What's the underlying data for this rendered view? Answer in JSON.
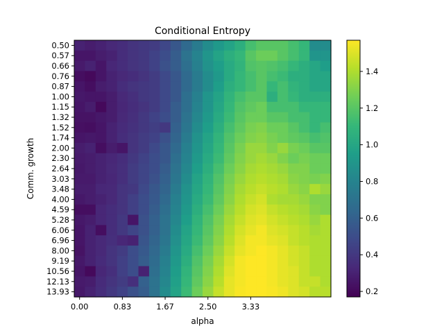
{
  "chart_data": {
    "type": "heatmap",
    "title": "Conditional Entropy",
    "xlabel": "alpha",
    "ylabel": "Comm. growth",
    "x_tick_labels": [
      "0.00",
      "0.83",
      "1.67",
      "2.50",
      "3.33"
    ],
    "x_tick_columns": [
      0,
      4,
      8,
      12,
      16
    ],
    "y_labels": [
      "0.50",
      "0.57",
      "0.66",
      "0.76",
      "0.87",
      "1.00",
      "1.15",
      "1.32",
      "1.52",
      "1.74",
      "2.00",
      "2.30",
      "2.64",
      "3.03",
      "3.48",
      "4.00",
      "4.59",
      "5.28",
      "6.06",
      "6.96",
      "8.00",
      "9.19",
      "10.56",
      "12.13",
      "13.93"
    ],
    "colorbar": {
      "min": 0.17,
      "max": 1.57,
      "ticks": [
        0.2,
        0.4,
        0.6,
        0.8,
        1.0,
        1.2,
        1.4
      ],
      "tick_labels": [
        "0.2",
        "0.4",
        "0.6",
        "0.8",
        "1.0",
        "1.2",
        "1.4"
      ],
      "colormap": [
        "#440154",
        "#482878",
        "#3e4989",
        "#31688e",
        "#26828e",
        "#1f9e89",
        "#35b779",
        "#6ece58",
        "#b5de2b",
        "#fde725"
      ]
    },
    "values": [
      [
        0.3,
        0.28,
        0.3,
        0.33,
        0.35,
        0.38,
        0.4,
        0.42,
        0.47,
        0.55,
        0.65,
        0.75,
        0.85,
        0.92,
        0.98,
        1.05,
        1.15,
        1.2,
        1.2,
        1.2,
        1.15,
        1.1,
        0.85,
        0.85
      ],
      [
        0.25,
        0.25,
        0.28,
        0.3,
        0.35,
        0.38,
        0.4,
        0.45,
        0.5,
        0.58,
        0.7,
        0.8,
        0.9,
        0.98,
        1.05,
        1.1,
        1.2,
        1.25,
        1.25,
        1.2,
        1.15,
        1.1,
        0.9,
        0.9
      ],
      [
        0.27,
        0.3,
        0.25,
        0.32,
        0.35,
        0.38,
        0.4,
        0.45,
        0.52,
        0.58,
        0.68,
        0.78,
        0.88,
        0.95,
        1.02,
        1.08,
        1.18,
        1.2,
        1.18,
        1.15,
        1.1,
        1.05,
        1.0,
        0.95
      ],
      [
        0.22,
        0.2,
        0.25,
        0.3,
        0.33,
        0.35,
        0.38,
        0.42,
        0.48,
        0.55,
        0.65,
        0.75,
        0.85,
        0.92,
        1.02,
        1.1,
        1.15,
        1.2,
        1.15,
        1.12,
        1.05,
        1.05,
        1.0,
        1.0
      ],
      [
        0.25,
        0.22,
        0.28,
        0.3,
        0.35,
        0.38,
        0.4,
        0.42,
        0.48,
        0.55,
        0.65,
        0.75,
        0.85,
        0.95,
        1.05,
        1.1,
        1.15,
        1.2,
        1.1,
        1.15,
        1.08,
        1.05,
        1.0,
        1.0
      ],
      [
        0.26,
        0.25,
        0.25,
        0.28,
        0.33,
        0.36,
        0.4,
        0.42,
        0.48,
        0.55,
        0.68,
        0.78,
        0.9,
        0.98,
        1.08,
        1.15,
        1.2,
        1.2,
        1.05,
        1.15,
        1.1,
        1.05,
        1.05,
        1.05
      ],
      [
        0.25,
        0.28,
        0.2,
        0.28,
        0.32,
        0.35,
        0.38,
        0.42,
        0.48,
        0.58,
        0.68,
        0.8,
        0.9,
        1.0,
        1.1,
        1.18,
        1.22,
        1.25,
        1.15,
        1.15,
        1.15,
        1.1,
        1.1,
        1.1
      ],
      [
        0.24,
        0.24,
        0.26,
        0.28,
        0.33,
        0.36,
        0.4,
        0.45,
        0.5,
        0.58,
        0.7,
        0.82,
        0.92,
        1.02,
        1.12,
        1.2,
        1.25,
        1.25,
        1.2,
        1.2,
        1.15,
        1.15,
        1.1,
        1.1
      ],
      [
        0.23,
        0.22,
        0.25,
        0.3,
        0.34,
        0.37,
        0.4,
        0.43,
        0.4,
        0.6,
        0.72,
        0.85,
        0.95,
        1.05,
        1.15,
        1.22,
        1.28,
        1.3,
        1.25,
        1.25,
        1.2,
        1.15,
        1.1,
        1.15
      ],
      [
        0.25,
        0.26,
        0.25,
        0.3,
        0.35,
        0.38,
        0.42,
        0.45,
        0.52,
        0.62,
        0.75,
        0.88,
        0.98,
        1.08,
        1.18,
        1.25,
        1.3,
        1.32,
        1.28,
        1.25,
        1.22,
        1.2,
        1.15,
        1.18
      ],
      [
        0.28,
        0.3,
        0.22,
        0.28,
        0.25,
        0.38,
        0.42,
        0.48,
        0.55,
        0.65,
        0.78,
        0.9,
        1.0,
        1.1,
        1.2,
        1.28,
        1.35,
        1.35,
        1.3,
        1.35,
        1.28,
        1.25,
        1.2,
        1.2
      ],
      [
        0.27,
        0.28,
        0.3,
        0.32,
        0.35,
        0.4,
        0.45,
        0.5,
        0.55,
        0.68,
        0.8,
        0.92,
        1.02,
        1.12,
        1.22,
        1.3,
        1.35,
        1.38,
        1.35,
        1.3,
        1.25,
        1.28,
        1.25,
        1.25
      ],
      [
        0.26,
        0.28,
        0.3,
        0.33,
        0.36,
        0.42,
        0.46,
        0.5,
        0.58,
        0.7,
        0.82,
        0.95,
        1.05,
        1.15,
        1.25,
        1.32,
        1.38,
        1.4,
        1.38,
        1.35,
        1.3,
        1.3,
        1.25,
        1.25
      ],
      [
        0.27,
        0.27,
        0.3,
        0.32,
        0.36,
        0.42,
        0.46,
        0.52,
        0.6,
        0.72,
        0.85,
        0.98,
        1.08,
        1.18,
        1.28,
        1.35,
        1.4,
        1.42,
        1.4,
        1.38,
        1.32,
        1.3,
        1.28,
        1.3
      ],
      [
        0.28,
        0.28,
        0.32,
        0.33,
        0.38,
        0.4,
        0.48,
        0.55,
        0.62,
        0.75,
        0.88,
        1.0,
        1.1,
        1.2,
        1.3,
        1.38,
        1.42,
        1.45,
        1.42,
        1.4,
        1.35,
        1.32,
        1.4,
        1.35
      ],
      [
        0.26,
        0.28,
        0.3,
        0.33,
        0.38,
        0.44,
        0.5,
        0.56,
        0.65,
        0.78,
        0.9,
        1.02,
        1.12,
        1.22,
        1.32,
        1.4,
        1.45,
        1.48,
        1.4,
        1.38,
        1.38,
        1.35,
        1.3,
        1.3
      ],
      [
        0.22,
        0.22,
        0.32,
        0.35,
        0.38,
        0.44,
        0.5,
        0.58,
        0.68,
        0.8,
        0.92,
        1.05,
        1.15,
        1.25,
        1.35,
        1.42,
        1.48,
        1.5,
        1.45,
        1.42,
        1.4,
        1.38,
        1.32,
        1.3
      ],
      [
        0.26,
        0.28,
        0.32,
        0.35,
        0.4,
        0.25,
        0.52,
        0.6,
        0.7,
        0.82,
        0.95,
        1.08,
        1.18,
        1.28,
        1.38,
        1.45,
        1.5,
        1.52,
        1.48,
        1.45,
        1.42,
        1.4,
        1.35,
        1.4
      ],
      [
        0.25,
        0.3,
        0.22,
        0.35,
        0.4,
        0.46,
        0.52,
        0.6,
        0.7,
        0.85,
        0.98,
        1.1,
        1.2,
        1.3,
        1.4,
        1.48,
        1.52,
        1.55,
        1.5,
        1.48,
        1.45,
        1.42,
        1.38,
        1.4
      ],
      [
        0.25,
        0.3,
        0.33,
        0.36,
        0.32,
        0.3,
        0.54,
        0.62,
        0.72,
        0.87,
        1.0,
        1.12,
        1.22,
        1.32,
        1.42,
        1.5,
        1.55,
        1.55,
        1.52,
        1.5,
        1.45,
        1.42,
        1.4,
        1.4
      ],
      [
        0.24,
        0.3,
        0.33,
        0.38,
        0.42,
        0.5,
        0.56,
        0.64,
        0.75,
        0.9,
        1.02,
        1.15,
        1.25,
        1.35,
        1.45,
        1.52,
        1.55,
        1.57,
        1.55,
        1.52,
        1.48,
        1.45,
        1.4,
        1.4
      ],
      [
        0.26,
        0.3,
        0.34,
        0.38,
        0.44,
        0.5,
        0.58,
        0.66,
        0.78,
        0.92,
        1.05,
        1.18,
        1.28,
        1.38,
        1.48,
        1.55,
        1.57,
        1.57,
        1.55,
        1.52,
        1.48,
        1.45,
        1.4,
        1.4
      ],
      [
        0.25,
        0.2,
        0.32,
        0.36,
        0.44,
        0.5,
        0.3,
        0.68,
        0.8,
        0.94,
        1.08,
        1.2,
        1.3,
        1.4,
        1.5,
        1.55,
        1.57,
        1.57,
        1.55,
        1.52,
        1.5,
        1.45,
        1.4,
        1.4
      ],
      [
        0.27,
        0.28,
        0.34,
        0.38,
        0.42,
        0.36,
        0.6,
        0.7,
        0.82,
        0.96,
        1.1,
        1.22,
        1.32,
        1.42,
        1.52,
        1.55,
        1.57,
        1.57,
        1.55,
        1.52,
        1.5,
        1.45,
        1.45,
        1.4
      ],
      [
        0.26,
        0.3,
        0.35,
        0.4,
        0.45,
        0.52,
        0.58,
        0.7,
        0.85,
        0.98,
        1.12,
        1.25,
        1.35,
        1.45,
        1.52,
        1.56,
        1.57,
        1.57,
        1.56,
        1.54,
        1.5,
        1.48,
        1.42,
        1.42
      ]
    ]
  }
}
